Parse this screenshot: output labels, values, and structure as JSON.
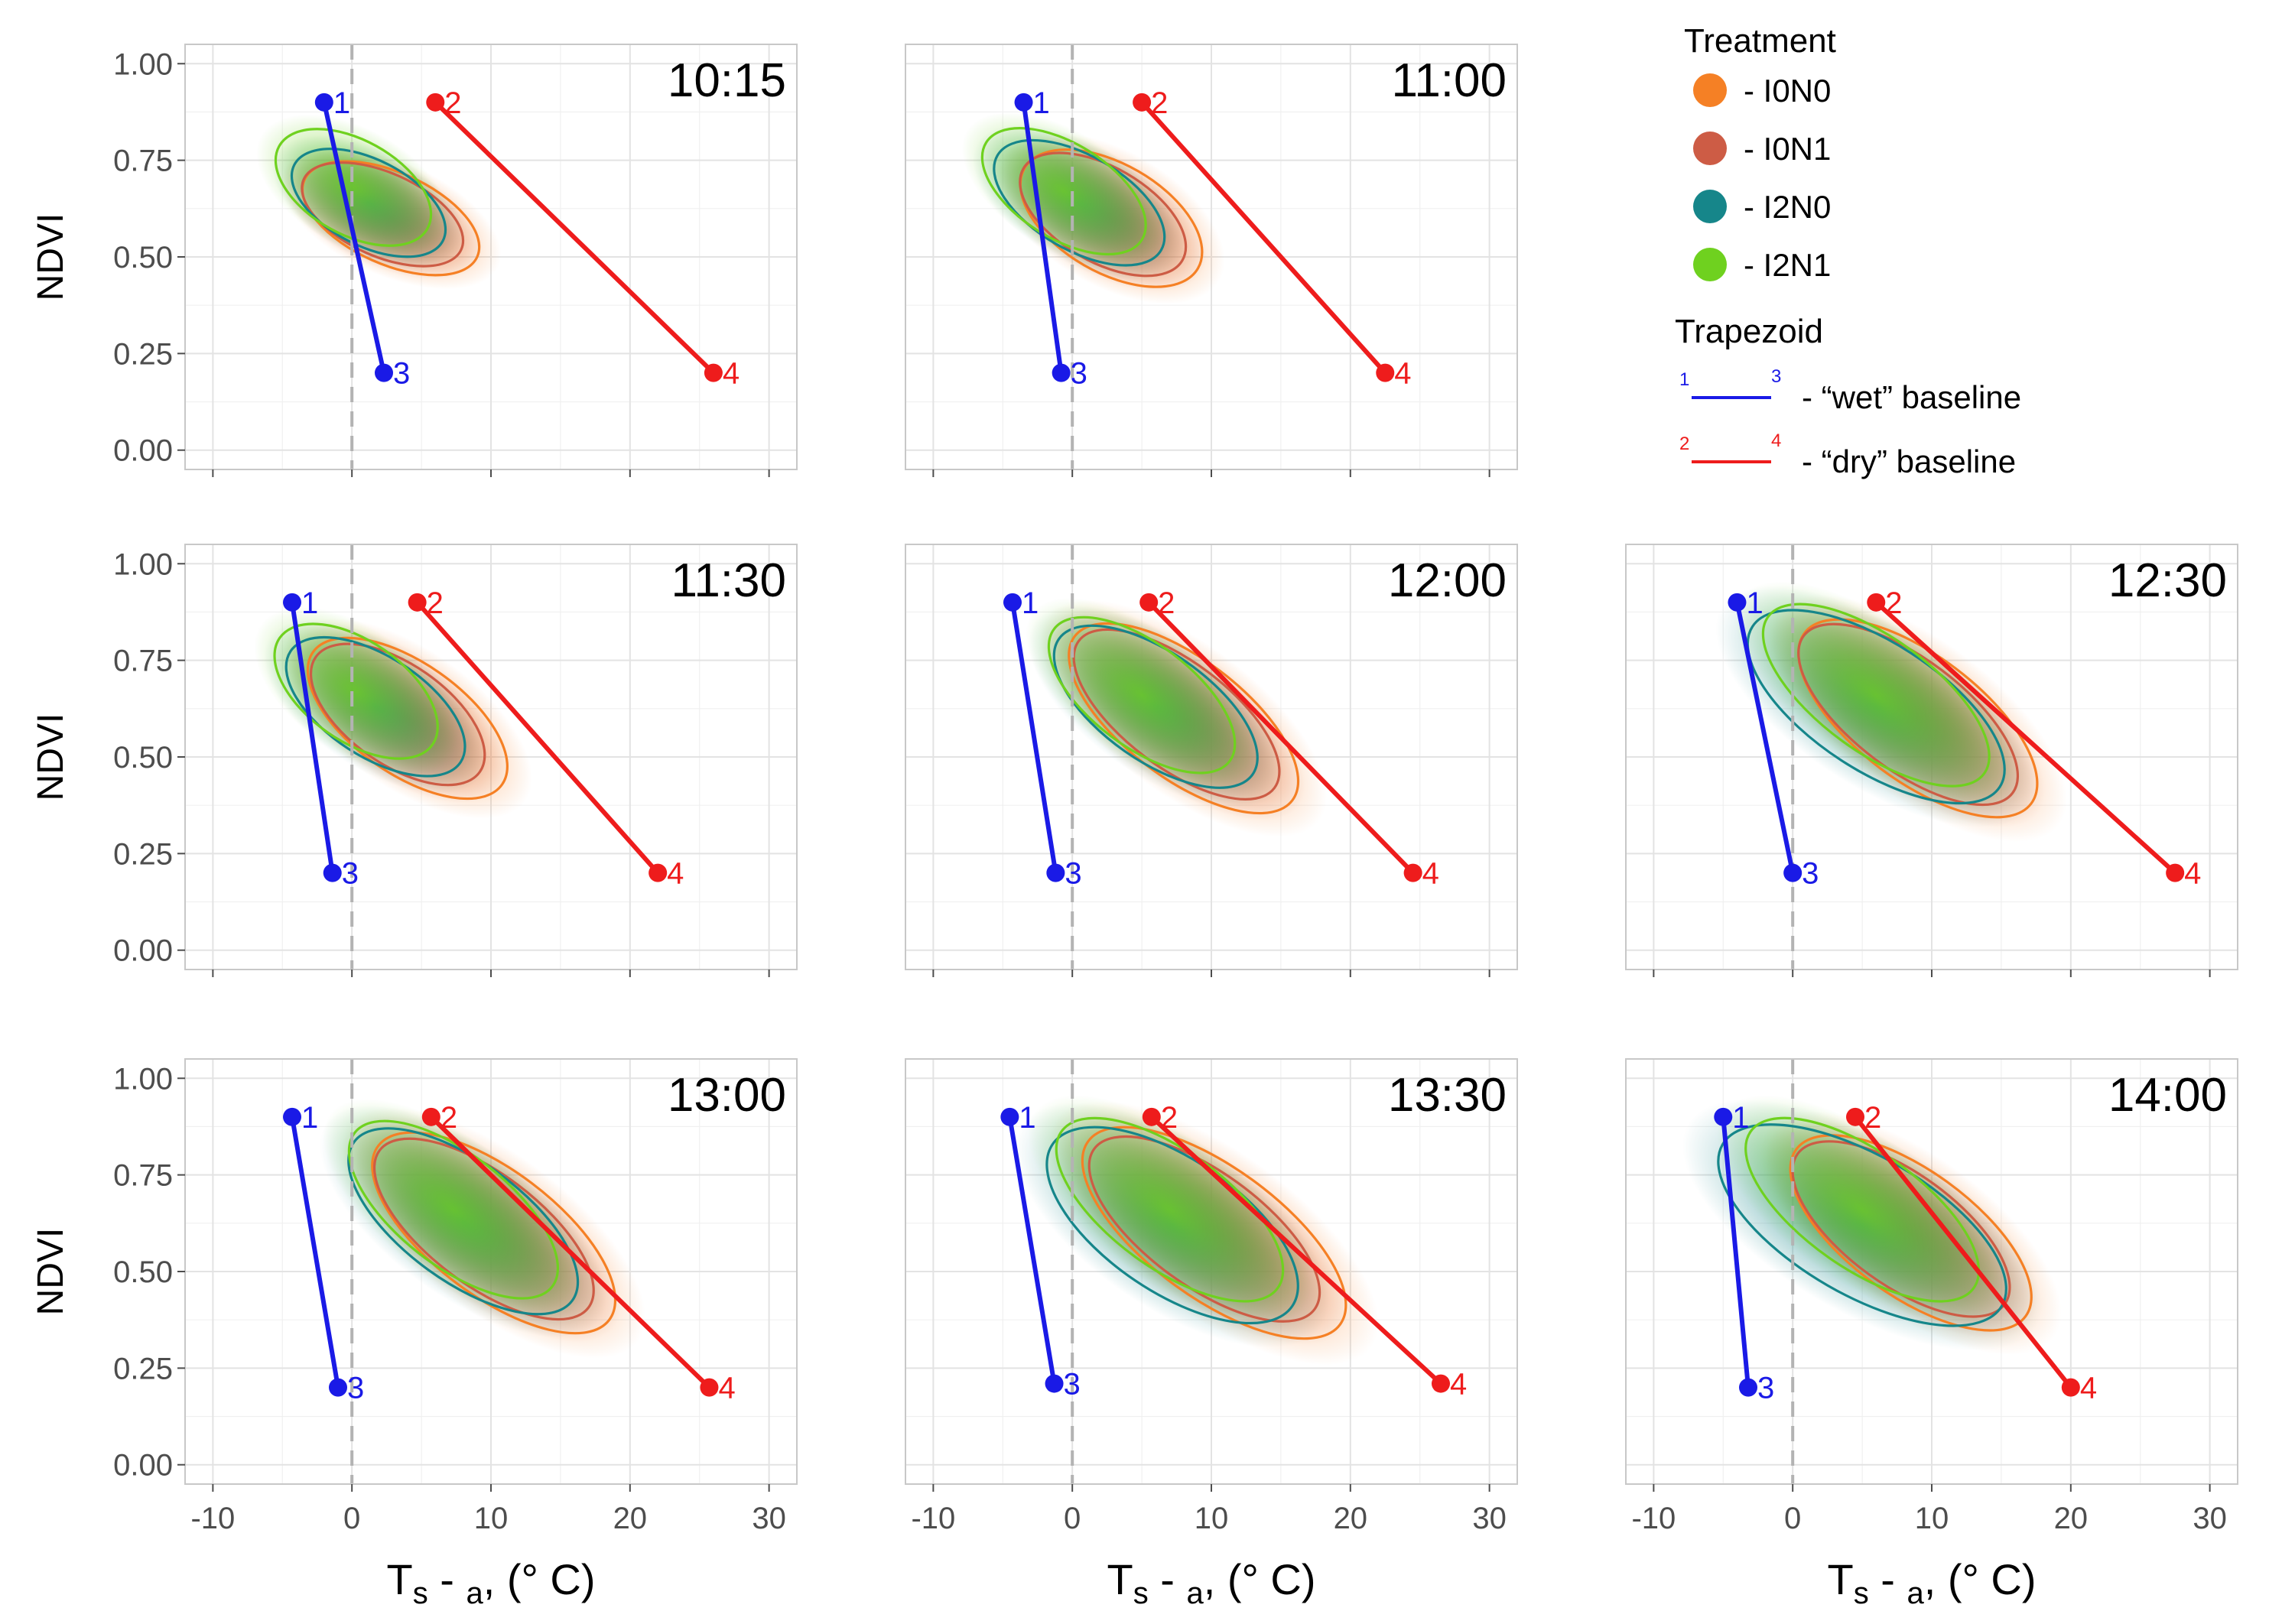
{
  "chart_data": {
    "type": "scatter",
    "xlabel": "Ts - Ta, (° C)",
    "ylabel": "NDVI",
    "xlim": [
      -12,
      32
    ],
    "ylim": [
      -0.05,
      1.05
    ],
    "x_ticks": [
      "-10",
      "0",
      "10",
      "20",
      "30"
    ],
    "y_ticks": [
      "0.00",
      "0.25",
      "0.50",
      "0.75",
      "1.00"
    ],
    "reference_line_x": 0,
    "legend": {
      "treatment_title": "Treatment",
      "treatments": [
        {
          "label": "- I0N0",
          "color": "#f58025"
        },
        {
          "label": "- I0N1",
          "color": "#cd5c45"
        },
        {
          "label": "- I2N0",
          "color": "#16868a"
        },
        {
          "label": "- I2N1",
          "color": "#6fd11f"
        }
      ],
      "trapezoid_title": "Trapezoid",
      "baselines": [
        {
          "label": "- “wet” baseline",
          "start": "1",
          "end": "3",
          "color": "#1a1ae6"
        },
        {
          "label": "- “dry” baseline",
          "start": "2",
          "end": "4",
          "color": "#ee1c1c"
        }
      ]
    },
    "panels": [
      {
        "title": "10:15",
        "wet": {
          "p1": [
            -2,
            0.9
          ],
          "p3": [
            2.3,
            0.2
          ]
        },
        "dry": {
          "p2": [
            6,
            0.9
          ],
          "p4": [
            26,
            0.2
          ]
        },
        "ellipses": [
          {
            "treatment": "I0N0",
            "center": [
              2.8,
              0.6
            ],
            "major": 6.8,
            "minor": 3.3,
            "angle": 24
          },
          {
            "treatment": "I0N1",
            "center": [
              2.2,
              0.61
            ],
            "major": 6.2,
            "minor": 3.0,
            "angle": 24
          },
          {
            "treatment": "I2N0",
            "center": [
              1.2,
              0.64
            ],
            "major": 6.0,
            "minor": 3.1,
            "angle": 27
          },
          {
            "treatment": "I2N1",
            "center": [
              0.1,
              0.68
            ],
            "major": 6.1,
            "minor": 3.4,
            "angle": 29
          }
        ]
      },
      {
        "title": "11:00",
        "wet": {
          "p1": [
            -3.5,
            0.9
          ],
          "p3": [
            -0.8,
            0.2
          ]
        },
        "dry": {
          "p2": [
            5,
            0.9
          ],
          "p4": [
            22.5,
            0.2
          ]
        },
        "ellipses": [
          {
            "treatment": "I0N0",
            "center": [
              2.8,
              0.6
            ],
            "major": 7.2,
            "minor": 3.9,
            "angle": 30
          },
          {
            "treatment": "I0N1",
            "center": [
              2.2,
              0.61
            ],
            "major": 6.6,
            "minor": 3.4,
            "angle": 30
          },
          {
            "treatment": "I2N0",
            "center": [
              0.5,
              0.64
            ],
            "major": 6.8,
            "minor": 3.4,
            "angle": 30
          },
          {
            "treatment": "I2N1",
            "center": [
              -0.6,
              0.67
            ],
            "major": 6.6,
            "minor": 3.4,
            "angle": 32
          }
        ]
      },
      {
        "title": "11:30",
        "wet": {
          "p1": [
            -4.3,
            0.9
          ],
          "p3": [
            -1.4,
            0.2
          ]
        },
        "dry": {
          "p2": [
            4.7,
            0.9
          ],
          "p4": [
            22,
            0.2
          ]
        },
        "ellipses": [
          {
            "treatment": "I0N0",
            "center": [
              4,
              0.6
            ],
            "major": 8.3,
            "minor": 4.0,
            "angle": 35
          },
          {
            "treatment": "I0N1",
            "center": [
              3.3,
              0.61
            ],
            "major": 7.2,
            "minor": 3.6,
            "angle": 35
          },
          {
            "treatment": "I2N0",
            "center": [
              1.7,
              0.63
            ],
            "major": 7.3,
            "minor": 3.6,
            "angle": 33
          },
          {
            "treatment": "I2N1",
            "center": [
              0.3,
              0.67
            ],
            "major": 6.7,
            "minor": 3.6,
            "angle": 35
          }
        ]
      },
      {
        "title": "12:00",
        "wet": {
          "p1": [
            -4.3,
            0.9
          ],
          "p3": [
            -1.2,
            0.2
          ]
        },
        "dry": {
          "p2": [
            5.5,
            0.9
          ],
          "p4": [
            24.5,
            0.2
          ]
        },
        "ellipses": [
          {
            "treatment": "I0N0",
            "center": [
              8,
              0.6
            ],
            "major": 9.8,
            "minor": 4.3,
            "angle": 37
          },
          {
            "treatment": "I0N1",
            "center": [
              7.5,
              0.61
            ],
            "major": 8.8,
            "minor": 3.8,
            "angle": 37
          },
          {
            "treatment": "I2N0",
            "center": [
              6,
              0.63
            ],
            "major": 8.5,
            "minor": 3.9,
            "angle": 35
          },
          {
            "treatment": "I2N1",
            "center": [
              5,
              0.66
            ],
            "major": 7.9,
            "minor": 3.7,
            "angle": 37
          }
        ]
      },
      {
        "title": "12:30",
        "wet": {
          "p1": [
            -4,
            0.9
          ],
          "p3": [
            0,
            0.2
          ]
        },
        "dry": {
          "p2": [
            6,
            0.9
          ],
          "p4": [
            27.5,
            0.2
          ]
        },
        "ellipses": [
          {
            "treatment": "I0N0",
            "center": [
              9,
              0.6
            ],
            "major": 10.2,
            "minor": 4.5,
            "angle": 37
          },
          {
            "treatment": "I0N1",
            "center": [
              8.3,
              0.61
            ],
            "major": 9.4,
            "minor": 4.0,
            "angle": 37
          },
          {
            "treatment": "I2N0",
            "center": [
              6,
              0.63
            ],
            "major": 10.6,
            "minor": 4.6,
            "angle": 33
          },
          {
            "treatment": "I2N1",
            "center": [
              6,
              0.66
            ],
            "major": 9.6,
            "minor": 4.1,
            "angle": 36
          }
        ]
      },
      {
        "title": "13:00",
        "wet": {
          "p1": [
            -4.3,
            0.9
          ],
          "p3": [
            -1,
            0.2
          ]
        },
        "dry": {
          "p2": [
            5.7,
            0.9
          ],
          "p4": [
            25.7,
            0.2
          ]
        },
        "ellipses": [
          {
            "treatment": "I0N0",
            "center": [
              10.2,
              0.6
            ],
            "major": 10.4,
            "minor": 4.5,
            "angle": 37
          },
          {
            "treatment": "I0N1",
            "center": [
              9.5,
              0.61
            ],
            "major": 9.4,
            "minor": 4.0,
            "angle": 37
          },
          {
            "treatment": "I2N0",
            "center": [
              8,
              0.63
            ],
            "major": 9.7,
            "minor": 4.3,
            "angle": 36
          },
          {
            "treatment": "I2N1",
            "center": [
              7.3,
              0.66
            ],
            "major": 9.0,
            "minor": 4.0,
            "angle": 38
          }
        ]
      },
      {
        "title": "13:30",
        "wet": {
          "p1": [
            -4.5,
            0.9
          ],
          "p3": [
            -1.3,
            0.21
          ]
        },
        "dry": {
          "p2": [
            5.7,
            0.9
          ],
          "p4": [
            26.5,
            0.21
          ]
        },
        "ellipses": [
          {
            "treatment": "I0N0",
            "center": [
              10.2,
              0.6
            ],
            "major": 11.2,
            "minor": 4.7,
            "angle": 36
          },
          {
            "treatment": "I0N1",
            "center": [
              9.5,
              0.61
            ],
            "major": 9.8,
            "minor": 4.1,
            "angle": 36
          },
          {
            "treatment": "I2N0",
            "center": [
              7.2,
              0.62
            ],
            "major": 10.4,
            "minor": 4.8,
            "angle": 34
          },
          {
            "treatment": "I2N1",
            "center": [
              7,
              0.66
            ],
            "major": 9.6,
            "minor": 4.2,
            "angle": 36
          }
        ]
      },
      {
        "title": "14:00",
        "wet": {
          "p1": [
            -5,
            0.9
          ],
          "p3": [
            -3.2,
            0.2
          ]
        },
        "dry": {
          "p2": [
            4.5,
            0.9
          ],
          "p4": [
            20,
            0.2
          ]
        },
        "ellipses": [
          {
            "treatment": "I0N0",
            "center": [
              8.5,
              0.6
            ],
            "major": 10.2,
            "minor": 4.5,
            "angle": 36
          },
          {
            "treatment": "I0N1",
            "center": [
              7.8,
              0.61
            ],
            "major": 9.2,
            "minor": 4.0,
            "angle": 36
          },
          {
            "treatment": "I2N0",
            "center": [
              5,
              0.62
            ],
            "major": 11.6,
            "minor": 5.0,
            "angle": 30
          },
          {
            "treatment": "I2N1",
            "center": [
              5,
              0.66
            ],
            "major": 9.8,
            "minor": 4.2,
            "angle": 35
          }
        ]
      }
    ]
  }
}
